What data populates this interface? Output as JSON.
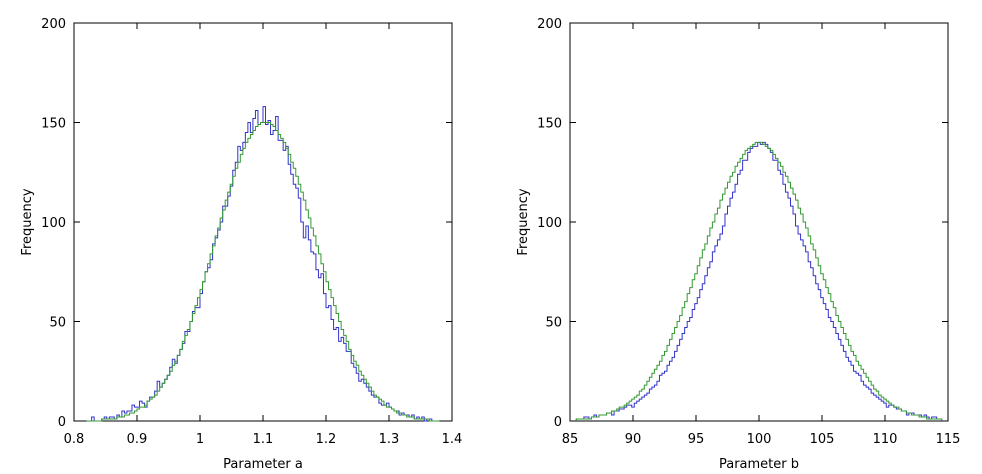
{
  "chart_data": [
    {
      "type": "histogram",
      "xlabel": "Parameter a",
      "ylabel": "Frequency",
      "xlim": [
        0.8,
        1.4
      ],
      "ylim": [
        0,
        200
      ],
      "xticks": [
        "0.8",
        "0.9",
        "1",
        "1.1",
        "1.2",
        "1.3",
        "1.4"
      ],
      "yticks": [
        "0",
        "50",
        "100",
        "150",
        "200"
      ],
      "grid": false,
      "bin_range": [
        0.82,
        1.38
      ],
      "bin_count": 140,
      "series": [
        {
          "style": "histogram-step",
          "color": "#3333cc",
          "values": [
            0,
            0,
            2,
            0,
            0,
            0,
            1,
            2,
            1,
            2,
            2,
            1,
            3,
            2,
            5,
            4,
            5,
            5,
            8,
            7,
            7,
            10,
            9,
            7,
            10,
            12,
            12,
            15,
            20,
            17,
            19,
            21,
            23,
            27,
            31,
            29,
            33,
            36,
            39,
            45,
            45,
            50,
            55,
            57,
            57,
            64,
            70,
            75,
            77,
            81,
            89,
            92,
            96,
            100,
            108,
            108,
            113,
            118,
            126,
            130,
            138,
            136,
            140,
            145,
            150,
            145,
            152,
            156,
            149,
            150,
            158,
            149,
            151,
            144,
            146,
            153,
            141,
            141,
            136,
            138,
            129,
            124,
            119,
            117,
            112,
            100,
            92,
            98,
            91,
            85,
            84,
            76,
            72,
            74,
            64,
            57,
            58,
            51,
            46,
            47,
            40,
            42,
            39,
            35,
            35,
            29,
            27,
            24,
            20,
            21,
            19,
            17,
            15,
            13,
            12,
            12,
            9,
            8,
            8,
            9,
            7,
            6,
            5,
            5,
            3,
            4,
            3,
            3,
            2,
            3,
            1,
            2,
            1,
            2,
            0,
            1,
            1,
            0,
            0,
            0
          ]
        },
        {
          "style": "fitted-step",
          "color": "#339933",
          "values": [
            0,
            0,
            0,
            0,
            0,
            0,
            1,
            1,
            1,
            1,
            1,
            1,
            2,
            2,
            2,
            3,
            3,
            4,
            4,
            5,
            6,
            7,
            7,
            8,
            10,
            11,
            12,
            13,
            15,
            17,
            19,
            21,
            23,
            25,
            28,
            30,
            33,
            36,
            40,
            43,
            46,
            50,
            54,
            58,
            62,
            66,
            70,
            75,
            79,
            84,
            88,
            93,
            97,
            102,
            106,
            111,
            115,
            119,
            123,
            127,
            130,
            134,
            137,
            140,
            142,
            144,
            146,
            148,
            149,
            150,
            150,
            150,
            150,
            149,
            148,
            146,
            144,
            142,
            140,
            137,
            134,
            130,
            127,
            123,
            119,
            115,
            111,
            106,
            102,
            97,
            93,
            88,
            84,
            79,
            75,
            70,
            66,
            62,
            58,
            54,
            50,
            46,
            43,
            40,
            36,
            33,
            30,
            28,
            25,
            23,
            21,
            19,
            17,
            15,
            13,
            12,
            11,
            10,
            8,
            7,
            7,
            6,
            5,
            4,
            4,
            3,
            3,
            2,
            2,
            2,
            1,
            1,
            1,
            1,
            1,
            1,
            0,
            0,
            0,
            0
          ]
        }
      ]
    },
    {
      "type": "histogram",
      "xlabel": "Parameter b",
      "ylabel": "Frequency",
      "xlim": [
        85,
        115
      ],
      "ylim": [
        0,
        200
      ],
      "xticks": [
        "85",
        "90",
        "95",
        "100",
        "105",
        "110",
        "115"
      ],
      "yticks": [
        "0",
        "50",
        "100",
        "150",
        "200"
      ],
      "grid": false,
      "bin_range": [
        85.5,
        114.5
      ],
      "bin_count": 145,
      "series": [
        {
          "style": "histogram-step",
          "color": "#3333cc",
          "values": [
            1,
            1,
            1,
            2,
            2,
            1,
            2,
            3,
            2,
            3,
            3,
            3,
            4,
            4,
            3,
            5,
            5,
            6,
            6,
            7,
            8,
            8,
            7,
            9,
            10,
            11,
            12,
            13,
            14,
            16,
            17,
            18,
            20,
            23,
            24,
            25,
            28,
            30,
            32,
            35,
            38,
            41,
            44,
            47,
            50,
            52,
            56,
            59,
            62,
            66,
            69,
            73,
            77,
            80,
            85,
            88,
            91,
            94,
            98,
            104,
            108,
            112,
            115,
            119,
            124,
            126,
            131,
            131,
            135,
            137,
            138,
            138,
            140,
            139,
            140,
            139,
            137,
            135,
            131,
            131,
            126,
            124,
            119,
            115,
            112,
            108,
            104,
            98,
            94,
            91,
            88,
            85,
            80,
            77,
            73,
            69,
            66,
            62,
            59,
            56,
            52,
            50,
            47,
            44,
            41,
            38,
            35,
            32,
            30,
            28,
            25,
            24,
            23,
            20,
            18,
            17,
            16,
            14,
            13,
            12,
            11,
            10,
            9,
            7,
            8,
            8,
            7,
            6,
            6,
            5,
            5,
            3,
            4,
            4,
            3,
            3,
            3,
            2,
            3,
            2,
            1,
            2,
            2,
            1,
            1
          ]
        },
        {
          "style": "fitted-step",
          "color": "#339933",
          "values": [
            1,
            1,
            1,
            1,
            1,
            1,
            2,
            2,
            2,
            3,
            3,
            3,
            4,
            4,
            5,
            5,
            6,
            7,
            7,
            8,
            9,
            10,
            11,
            12,
            13,
            15,
            16,
            18,
            20,
            22,
            24,
            26,
            28,
            30,
            33,
            35,
            38,
            41,
            44,
            47,
            50,
            53,
            57,
            60,
            64,
            67,
            71,
            74,
            78,
            82,
            86,
            89,
            93,
            97,
            100,
            104,
            107,
            111,
            114,
            117,
            120,
            123,
            125,
            128,
            130,
            132,
            134,
            136,
            137,
            138,
            139,
            140,
            140,
            140,
            139,
            138,
            137,
            136,
            134,
            132,
            130,
            128,
            125,
            123,
            120,
            117,
            114,
            111,
            107,
            104,
            100,
            97,
            93,
            89,
            86,
            82,
            78,
            74,
            71,
            67,
            64,
            60,
            57,
            53,
            50,
            47,
            44,
            41,
            38,
            35,
            33,
            30,
            28,
            26,
            24,
            22,
            20,
            18,
            16,
            15,
            13,
            12,
            11,
            10,
            9,
            8,
            7,
            7,
            6,
            5,
            5,
            4,
            4,
            3,
            3,
            3,
            2,
            2,
            2,
            1,
            1,
            1,
            1,
            1,
            1
          ]
        }
      ]
    }
  ]
}
